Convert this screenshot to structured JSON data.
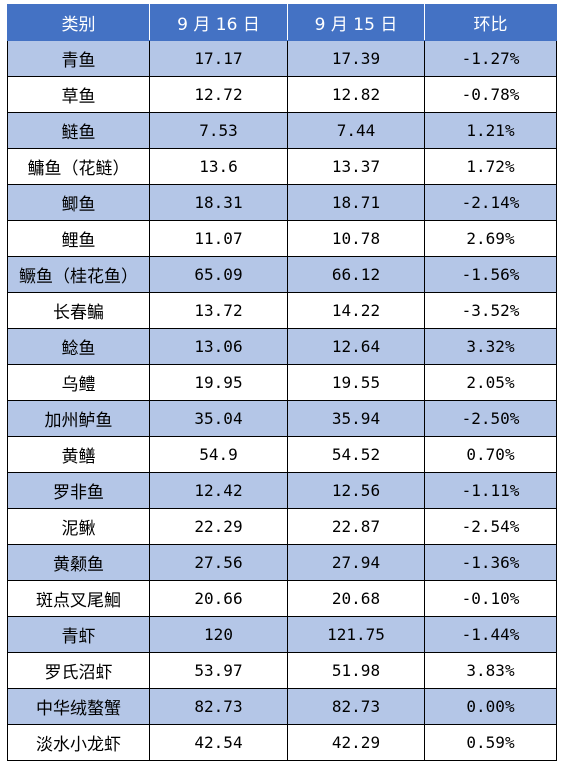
{
  "table": {
    "headers": [
      "类别",
      "9 月 16 日",
      "9 月 15 日",
      "环比"
    ],
    "rows": [
      [
        "青鱼",
        "17.17",
        "17.39",
        "-1.27%"
      ],
      [
        "草鱼",
        "12.72",
        "12.82",
        "-0.78%"
      ],
      [
        "鲢鱼",
        "7.53",
        "7.44",
        "1.21%"
      ],
      [
        "鳙鱼（花鲢）",
        "13.6",
        "13.37",
        "1.72%"
      ],
      [
        "鲫鱼",
        "18.31",
        "18.71",
        "-2.14%"
      ],
      [
        "鲤鱼",
        "11.07",
        "10.78",
        "2.69%"
      ],
      [
        "鳜鱼（桂花鱼）",
        "65.09",
        "66.12",
        "-1.56%"
      ],
      [
        "长春鳊",
        "13.72",
        "14.22",
        "-3.52%"
      ],
      [
        "鲶鱼",
        "13.06",
        "12.64",
        "3.32%"
      ],
      [
        "乌鳢",
        "19.95",
        "19.55",
        "2.05%"
      ],
      [
        "加州鲈鱼",
        "35.04",
        "35.94",
        "-2.50%"
      ],
      [
        "黄鳝",
        "54.9",
        "54.52",
        "0.70%"
      ],
      [
        "罗非鱼",
        "12.42",
        "12.56",
        "-1.11%"
      ],
      [
        "泥鳅",
        "22.29",
        "22.87",
        "-2.54%"
      ],
      [
        "黄颡鱼",
        "27.56",
        "27.94",
        "-1.36%"
      ],
      [
        "斑点叉尾鮰",
        "20.66",
        "20.68",
        "-0.10%"
      ],
      [
        "青虾",
        "120",
        "121.75",
        "-1.44%"
      ],
      [
        "罗氏沼虾",
        "53.97",
        "51.98",
        "3.83%"
      ],
      [
        "中华绒螯蟹",
        "82.73",
        "82.73",
        "0.00%"
      ],
      [
        "淡水小龙虾",
        "42.54",
        "42.29",
        "0.59%"
      ]
    ]
  }
}
